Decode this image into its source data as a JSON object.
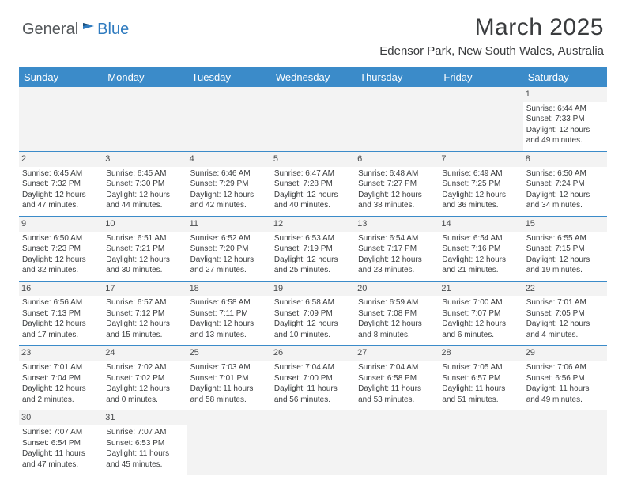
{
  "logo": {
    "textGeneral": "General",
    "textBlue": "Blue"
  },
  "title": "March 2025",
  "location": "Edensor Park, New South Wales, Australia",
  "colors": {
    "headerBg": "#3b8bc9",
    "headerText": "#ffffff",
    "bodyText": "#3a3c3e",
    "dayBg": "#f3f3f3",
    "border": "#3b8bc9"
  },
  "dayHeaders": [
    "Sunday",
    "Monday",
    "Tuesday",
    "Wednesday",
    "Thursday",
    "Friday",
    "Saturday"
  ],
  "weeks": [
    [
      null,
      null,
      null,
      null,
      null,
      null,
      {
        "n": "1",
        "sunrise": "6:44 AM",
        "sunset": "7:33 PM",
        "dh": "12",
        "dm": "49"
      }
    ],
    [
      {
        "n": "2",
        "sunrise": "6:45 AM",
        "sunset": "7:32 PM",
        "dh": "12",
        "dm": "47"
      },
      {
        "n": "3",
        "sunrise": "6:45 AM",
        "sunset": "7:30 PM",
        "dh": "12",
        "dm": "44"
      },
      {
        "n": "4",
        "sunrise": "6:46 AM",
        "sunset": "7:29 PM",
        "dh": "12",
        "dm": "42"
      },
      {
        "n": "5",
        "sunrise": "6:47 AM",
        "sunset": "7:28 PM",
        "dh": "12",
        "dm": "40"
      },
      {
        "n": "6",
        "sunrise": "6:48 AM",
        "sunset": "7:27 PM",
        "dh": "12",
        "dm": "38"
      },
      {
        "n": "7",
        "sunrise": "6:49 AM",
        "sunset": "7:25 PM",
        "dh": "12",
        "dm": "36"
      },
      {
        "n": "8",
        "sunrise": "6:50 AM",
        "sunset": "7:24 PM",
        "dh": "12",
        "dm": "34"
      }
    ],
    [
      {
        "n": "9",
        "sunrise": "6:50 AM",
        "sunset": "7:23 PM",
        "dh": "12",
        "dm": "32"
      },
      {
        "n": "10",
        "sunrise": "6:51 AM",
        "sunset": "7:21 PM",
        "dh": "12",
        "dm": "30"
      },
      {
        "n": "11",
        "sunrise": "6:52 AM",
        "sunset": "7:20 PM",
        "dh": "12",
        "dm": "27"
      },
      {
        "n": "12",
        "sunrise": "6:53 AM",
        "sunset": "7:19 PM",
        "dh": "12",
        "dm": "25"
      },
      {
        "n": "13",
        "sunrise": "6:54 AM",
        "sunset": "7:17 PM",
        "dh": "12",
        "dm": "23"
      },
      {
        "n": "14",
        "sunrise": "6:54 AM",
        "sunset": "7:16 PM",
        "dh": "12",
        "dm": "21"
      },
      {
        "n": "15",
        "sunrise": "6:55 AM",
        "sunset": "7:15 PM",
        "dh": "12",
        "dm": "19"
      }
    ],
    [
      {
        "n": "16",
        "sunrise": "6:56 AM",
        "sunset": "7:13 PM",
        "dh": "12",
        "dm": "17"
      },
      {
        "n": "17",
        "sunrise": "6:57 AM",
        "sunset": "7:12 PM",
        "dh": "12",
        "dm": "15"
      },
      {
        "n": "18",
        "sunrise": "6:58 AM",
        "sunset": "7:11 PM",
        "dh": "12",
        "dm": "13"
      },
      {
        "n": "19",
        "sunrise": "6:58 AM",
        "sunset": "7:09 PM",
        "dh": "12",
        "dm": "10"
      },
      {
        "n": "20",
        "sunrise": "6:59 AM",
        "sunset": "7:08 PM",
        "dh": "12",
        "dm": "8"
      },
      {
        "n": "21",
        "sunrise": "7:00 AM",
        "sunset": "7:07 PM",
        "dh": "12",
        "dm": "6"
      },
      {
        "n": "22",
        "sunrise": "7:01 AM",
        "sunset": "7:05 PM",
        "dh": "12",
        "dm": "4"
      }
    ],
    [
      {
        "n": "23",
        "sunrise": "7:01 AM",
        "sunset": "7:04 PM",
        "dh": "12",
        "dm": "2"
      },
      {
        "n": "24",
        "sunrise": "7:02 AM",
        "sunset": "7:02 PM",
        "dh": "12",
        "dm": "0"
      },
      {
        "n": "25",
        "sunrise": "7:03 AM",
        "sunset": "7:01 PM",
        "dh": "11",
        "dm": "58"
      },
      {
        "n": "26",
        "sunrise": "7:04 AM",
        "sunset": "7:00 PM",
        "dh": "11",
        "dm": "56"
      },
      {
        "n": "27",
        "sunrise": "7:04 AM",
        "sunset": "6:58 PM",
        "dh": "11",
        "dm": "53"
      },
      {
        "n": "28",
        "sunrise": "7:05 AM",
        "sunset": "6:57 PM",
        "dh": "11",
        "dm": "51"
      },
      {
        "n": "29",
        "sunrise": "7:06 AM",
        "sunset": "6:56 PM",
        "dh": "11",
        "dm": "49"
      }
    ],
    [
      {
        "n": "30",
        "sunrise": "7:07 AM",
        "sunset": "6:54 PM",
        "dh": "11",
        "dm": "47"
      },
      {
        "n": "31",
        "sunrise": "7:07 AM",
        "sunset": "6:53 PM",
        "dh": "11",
        "dm": "45"
      },
      null,
      null,
      null,
      null,
      null
    ]
  ],
  "labels": {
    "sunrisePrefix": "Sunrise: ",
    "sunsetPrefix": "Sunset: ",
    "daylightPrefix": "Daylight: ",
    "hoursWord": " hours",
    "andWord": "and ",
    "minutesWord": " minutes."
  }
}
